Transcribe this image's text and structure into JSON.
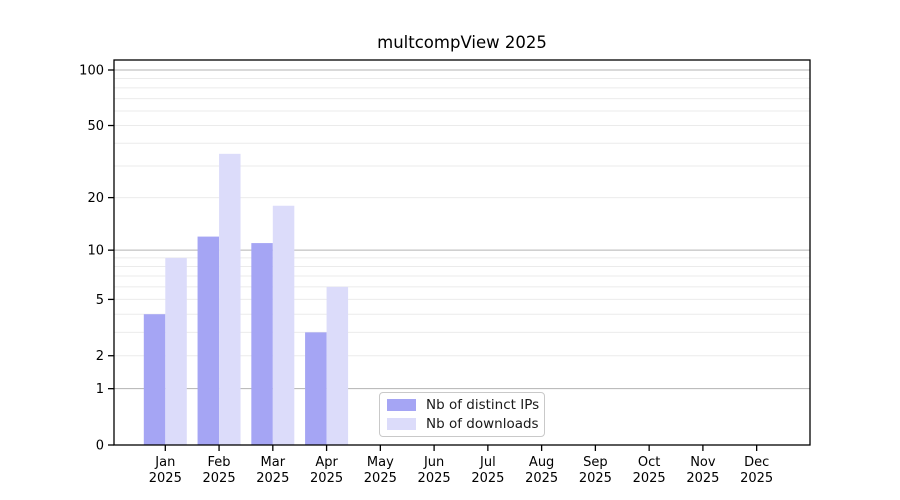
{
  "chart_data": {
    "type": "bar",
    "title": "multcompView 2025",
    "categories": [
      "Jan",
      "Feb",
      "Mar",
      "Apr",
      "May",
      "Jun",
      "Jul",
      "Aug",
      "Sep",
      "Oct",
      "Nov",
      "Dec"
    ],
    "x_year_label": "2025",
    "series": [
      {
        "name": "Nb of distinct IPs",
        "color": "#a5a5f4",
        "values": [
          4,
          12,
          11,
          3,
          0,
          0,
          0,
          0,
          0,
          0,
          0,
          0
        ]
      },
      {
        "name": "Nb of downloads",
        "color": "#dcdcfa",
        "values": [
          9,
          35,
          18,
          6,
          0,
          0,
          0,
          0,
          0,
          0,
          0,
          0
        ]
      }
    ],
    "yscale": "log1p",
    "ylim": [
      0,
      100
    ],
    "ytick_labels": [
      "100",
      "50",
      "20",
      "10",
      "5",
      "2",
      "1",
      "0"
    ],
    "ytick_values": [
      100,
      50,
      20,
      10,
      5,
      2,
      1,
      0
    ],
    "major_grid_values": [
      1,
      10,
      100
    ],
    "grid": true,
    "legend_position": "lower center"
  },
  "colors": {
    "background": "#ffffff",
    "axis": "#000000",
    "major_grid": "#b3b3b3",
    "minor_grid": "#ebebeb",
    "tick_text": "#000000",
    "legend_border": "#c9c9c9"
  }
}
